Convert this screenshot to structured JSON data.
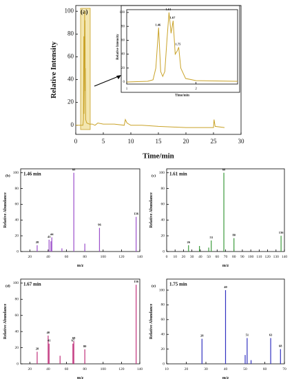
{
  "chart_data": [
    {
      "type": "line",
      "label": "(a)",
      "xlabel": "Time/min",
      "ylabel": "Relative Intensity",
      "color": "#c9a227",
      "x": [
        0,
        1.3,
        1.4,
        1.46,
        1.5,
        1.55,
        1.61,
        1.64,
        1.67,
        1.72,
        1.75,
        1.8,
        2.0,
        2.5,
        3,
        3.5,
        4,
        5,
        7,
        8.8,
        9.0,
        9.3,
        10,
        12,
        15,
        20,
        25,
        25.1,
        25.3,
        27
      ],
      "values": [
        0,
        0,
        5,
        78,
        10,
        40,
        100,
        70,
        92,
        30,
        50,
        5,
        2,
        1,
        1,
        0,
        2,
        1,
        1,
        0,
        5,
        2,
        0,
        0,
        -1,
        -2,
        -2,
        5,
        -1,
        -2
      ],
      "xlim": [
        0,
        30
      ],
      "xticks": [
        0,
        5,
        10,
        15,
        20,
        25,
        30
      ],
      "ylim": [
        -8,
        105
      ],
      "yticks": [
        0,
        20,
        40,
        60,
        80,
        100
      ]
    },
    {
      "type": "line",
      "xlabel": "Time/min",
      "ylabel": "Relative Intensity",
      "color": "#c9a227",
      "x": [
        1,
        1.3,
        1.38,
        1.42,
        1.46,
        1.49,
        1.52,
        1.55,
        1.58,
        1.61,
        1.64,
        1.67,
        1.7,
        1.73,
        1.75,
        1.78,
        1.85,
        2,
        2.6
      ],
      "values": [
        0,
        1,
        3,
        20,
        78,
        15,
        8,
        15,
        60,
        100,
        70,
        88,
        40,
        45,
        50,
        20,
        5,
        2,
        1
      ],
      "x_labels": [
        null,
        null,
        null,
        null,
        "1.46",
        null,
        null,
        null,
        null,
        "1.61",
        null,
        "1.67",
        null,
        null,
        "1.75",
        null,
        null,
        null,
        null
      ],
      "xlim": [
        1,
        2.6
      ],
      "xticks": [
        1,
        2
      ],
      "ylim": [
        -3,
        104
      ],
      "yticks": [
        0,
        20,
        40,
        60,
        80,
        100
      ]
    },
    {
      "type": "stem",
      "label": "(b)",
      "subtitle": "1.46 min",
      "xlabel": "m/z",
      "ylabel": "Relative Abundance",
      "color": "#9b4dca",
      "x": [
        28,
        41,
        43,
        44,
        55,
        68,
        80,
        96,
        136
      ],
      "values": [
        8,
        15,
        13,
        18,
        4,
        100,
        10,
        30,
        44
      ],
      "x_labels": [
        "28",
        "41",
        null,
        "44",
        null,
        "68",
        null,
        "96",
        "136"
      ],
      "xlim": [
        10,
        140
      ],
      "xticks": [
        20,
        40,
        60,
        80,
        100,
        120,
        140
      ],
      "ylim": [
        0,
        105
      ],
      "yticks": [
        0,
        20,
        40,
        60,
        80,
        100
      ]
    },
    {
      "type": "stem",
      "label": "(c)",
      "subtitle": "1.61 min",
      "xlabel": "m/z",
      "ylabel": "Relative Abundance",
      "color": "#3a9a3a",
      "x": [
        26,
        39,
        50,
        53,
        68,
        80,
        136
      ],
      "values": [
        8,
        7,
        5,
        14,
        100,
        17,
        20
      ],
      "x_labels": [
        "26",
        null,
        null,
        "53",
        "68",
        "80",
        "136"
      ],
      "xlim": [
        0,
        140
      ],
      "xticks": [
        0,
        10,
        20,
        30,
        40,
        50,
        60,
        70,
        80,
        90,
        100,
        110,
        120,
        130,
        140
      ],
      "ylim": [
        0,
        105
      ],
      "yticks": [
        0,
        20,
        40,
        60,
        80,
        100
      ]
    },
    {
      "type": "stem",
      "label": "(d)",
      "subtitle": "1.67 min",
      "xlabel": "m/z",
      "ylabel": "Relative Abundance",
      "color": "#c0307a",
      "x": [
        28,
        40,
        41,
        53,
        67,
        68,
        80,
        136
      ],
      "values": [
        15,
        35,
        25,
        10,
        25,
        28,
        18,
        98
      ],
      "x_labels": [
        "28",
        "40",
        "41",
        null,
        "67",
        "68",
        "80",
        "136"
      ],
      "xlim": [
        10,
        140
      ],
      "xticks": [
        20,
        40,
        60,
        80,
        100,
        120,
        140
      ],
      "ylim": [
        0,
        105
      ],
      "yticks": [
        0,
        20,
        40,
        60,
        80,
        100
      ]
    },
    {
      "type": "stem",
      "label": "(e)",
      "subtitle": "1.75 min",
      "xlabel": "m/z",
      "ylabel": "Relative Abundance",
      "color": "#3030c0",
      "x": [
        28,
        40,
        50,
        51,
        53,
        63,
        68
      ],
      "values": [
        34,
        100,
        12,
        35,
        5,
        35,
        20
      ],
      "x_labels": [
        "28",
        "40",
        null,
        "51",
        null,
        "63",
        "68"
      ],
      "xlim": [
        10,
        70
      ],
      "xticks": [
        10,
        20,
        30,
        40,
        50,
        60,
        70
      ],
      "ylim": [
        0,
        115
      ],
      "yticks": [
        0,
        20,
        40,
        60,
        80,
        100
      ]
    }
  ]
}
